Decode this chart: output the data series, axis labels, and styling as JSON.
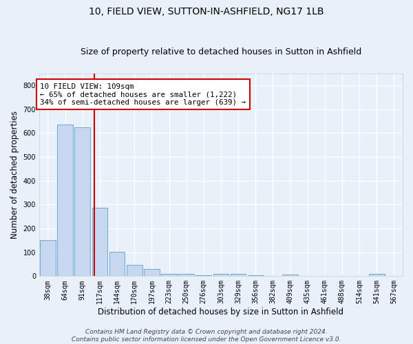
{
  "title": "10, FIELD VIEW, SUTTON-IN-ASHFIELD, NG17 1LB",
  "subtitle": "Size of property relative to detached houses in Sutton in Ashfield",
  "xlabel": "Distribution of detached houses by size in Sutton in Ashfield",
  "ylabel": "Number of detached properties",
  "bar_labels": [
    "38sqm",
    "64sqm",
    "91sqm",
    "117sqm",
    "144sqm",
    "170sqm",
    "197sqm",
    "223sqm",
    "250sqm",
    "276sqm",
    "303sqm",
    "329sqm",
    "356sqm",
    "382sqm",
    "409sqm",
    "435sqm",
    "461sqm",
    "488sqm",
    "514sqm",
    "541sqm",
    "567sqm"
  ],
  "bar_values": [
    150,
    635,
    625,
    288,
    103,
    46,
    30,
    11,
    10,
    5,
    9,
    9,
    5,
    0,
    7,
    0,
    0,
    0,
    0,
    9,
    0
  ],
  "bar_color": "#c5d8f0",
  "bar_edge_color": "#6aaad4",
  "bg_color": "#e8f0fa",
  "grid_color": "#ffffff",
  "vline_x": 2.67,
  "vline_color": "#cc0000",
  "annotation_text": "10 FIELD VIEW: 109sqm\n← 65% of detached houses are smaller (1,222)\n34% of semi-detached houses are larger (639) →",
  "annotation_box_color": "#ffffff",
  "annotation_box_edge": "#cc0000",
  "ylim": [
    0,
    850
  ],
  "yticks": [
    0,
    100,
    200,
    300,
    400,
    500,
    600,
    700,
    800
  ],
  "footnote": "Contains HM Land Registry data © Crown copyright and database right 2024.\nContains public sector information licensed under the Open Government Licence v3.0.",
  "title_fontsize": 10,
  "subtitle_fontsize": 9,
  "label_fontsize": 8.5,
  "tick_fontsize": 7,
  "footnote_fontsize": 6.5,
  "annot_fontsize": 7.8
}
